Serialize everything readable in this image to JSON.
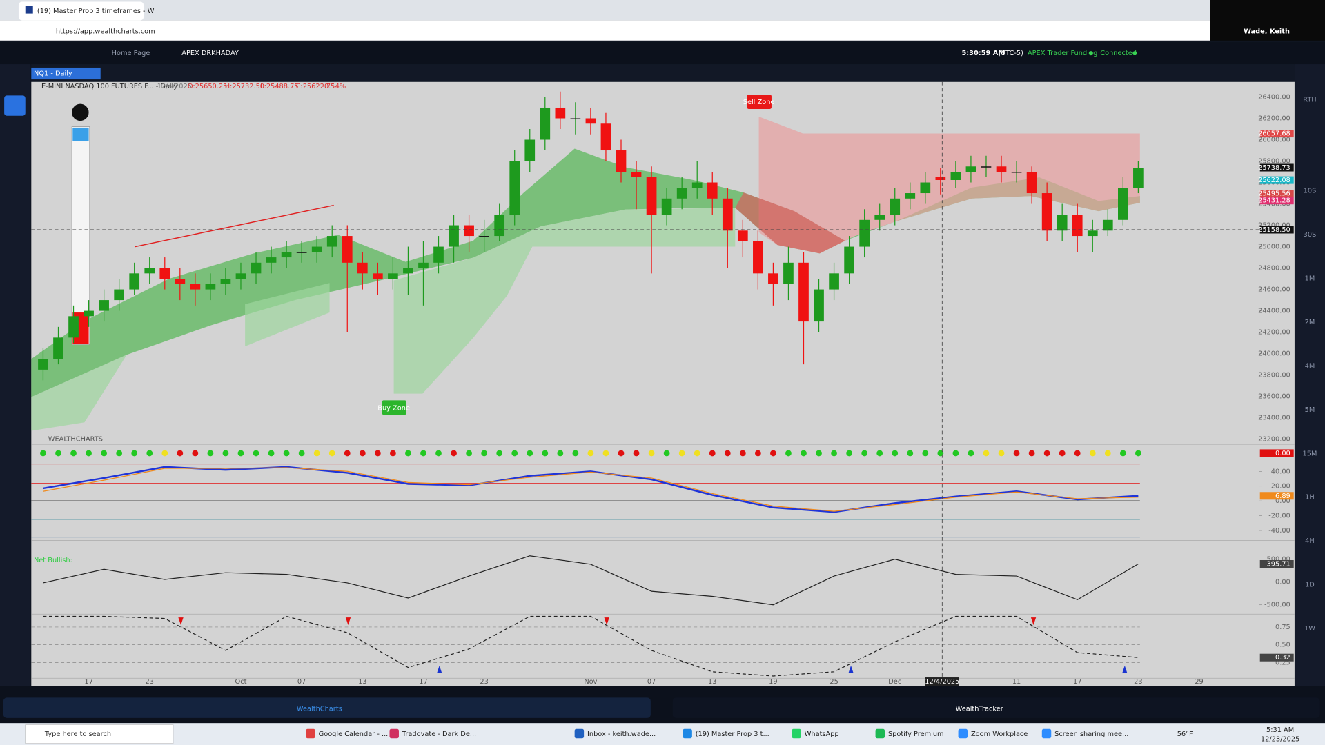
{
  "browser": {
    "tab_title": "(19) Master Prop 3 timeframes - W",
    "url": "https://app.wealthcharts.com",
    "user": "Wade, Keith"
  },
  "app": {
    "tabs": [
      "Home Page",
      "APEX DRKHADAY"
    ],
    "clock": "5:30:59 AM",
    "timezone": "(UTC-5)",
    "account": "APEX Trader Funding",
    "status": "Connected",
    "symbol_tab": "NQ1 - Daily",
    "logo": "WEALTHCHARTS",
    "rth": "RTH",
    "timeframes": [
      "10S",
      "30S",
      "1M",
      "2M",
      "4M",
      "5M",
      "15M",
      "1H",
      "4H",
      "1D",
      "1W"
    ],
    "bottom_tabs": [
      "WealthCharts",
      "WealthTracker"
    ]
  },
  "legend": {
    "name": "E-MINI NASDAQ 100 FUTURES F... - Daily",
    "date": "12/4/2025",
    "open": "O:25650.25",
    "high": "H:25732.50",
    "low": "L:25488.75",
    "close": "C:25622.75",
    "change": "-0.14%"
  },
  "chart_data": [
    {
      "type": "candlestick",
      "up_color": "#1e9a1e",
      "down_color": "#f01212",
      "categories": [
        null,
        null,
        null,
        "17",
        null,
        null,
        null,
        "23",
        null,
        null,
        null,
        null,
        null,
        "Oct",
        null,
        null,
        null,
        "07",
        null,
        null,
        null,
        "13",
        null,
        null,
        null,
        "17",
        null,
        null,
        null,
        "23",
        null,
        null,
        null,
        null,
        null,
        null,
        "Nov",
        null,
        null,
        null,
        "07",
        null,
        null,
        null,
        "13",
        null,
        null,
        null,
        "19",
        null,
        null,
        null,
        "25",
        null,
        null,
        null,
        "Dec",
        null,
        null,
        null,
        null,
        null,
        null,
        null,
        "11",
        null,
        null,
        null,
        "17",
        null,
        null,
        null,
        "23",
        null,
        null,
        null,
        "29"
      ],
      "open": [
        23850,
        23950,
        24150,
        24350,
        24400,
        24500,
        24600,
        24750,
        24800,
        24700,
        24650,
        24600,
        24650,
        24700,
        24750,
        24850,
        24900,
        24950,
        24950,
        25000,
        25100,
        24850,
        24750,
        24700,
        24750,
        24800,
        24850,
        25000,
        25200,
        25100,
        25100,
        25300,
        25800,
        26000,
        26300,
        26200,
        26200,
        26150,
        25900,
        25700,
        25650,
        25300,
        25450,
        25550,
        25600,
        25450,
        25150,
        25050,
        24750,
        24650,
        24850,
        24300,
        24600,
        24750,
        25000,
        25250,
        25300,
        25450,
        25500,
        25650.25,
        25622.75,
        25700,
        25750,
        25750,
        25700,
        25700,
        25500,
        25150,
        25300,
        25100,
        25150,
        25250,
        25550,
        null,
        null,
        null,
        null
      ],
      "high": [
        24050,
        24250,
        24450,
        24500,
        24600,
        24700,
        24850,
        24900,
        24900,
        24800,
        24750,
        24750,
        24800,
        24850,
        24950,
        25000,
        25050,
        25050,
        25100,
        25200,
        25200,
        24950,
        24850,
        24900,
        25000,
        25050,
        25100,
        25300,
        25300,
        25250,
        25400,
        25900,
        26100,
        26400,
        26450,
        26350,
        26300,
        26250,
        26000,
        25800,
        25750,
        25550,
        25650,
        25800,
        25700,
        25550,
        25250,
        25150,
        24850,
        25000,
        24950,
        24700,
        24850,
        25100,
        25350,
        25400,
        25550,
        25600,
        25700,
        25732.5,
        25800,
        25850,
        25850,
        25850,
        25800,
        25750,
        25600,
        25400,
        25400,
        25250,
        25350,
        25650,
        25800,
        null,
        null,
        null,
        null
      ],
      "low": [
        23750,
        23900,
        24100,
        24250,
        24300,
        24400,
        24550,
        24650,
        24600,
        24500,
        24450,
        24500,
        24550,
        24600,
        24650,
        24750,
        24800,
        24850,
        24850,
        24900,
        24200,
        24600,
        24550,
        24600,
        24550,
        24450,
        24750,
        24850,
        24950,
        24950,
        25050,
        25200,
        25700,
        25900,
        26100,
        26050,
        26050,
        25800,
        25600,
        25350,
        24750,
        25200,
        25350,
        25450,
        25300,
        24800,
        24900,
        24600,
        24450,
        24500,
        23900,
        24200,
        24500,
        24650,
        24900,
        25150,
        25200,
        25350,
        25400,
        25488.75,
        25550,
        25600,
        25650,
        25600,
        25600,
        25400,
        25050,
        25050,
        24950,
        24950,
        25100,
        25200,
        25500,
        null,
        null,
        null,
        null
      ],
      "close": [
        23950,
        24150,
        24350,
        24400,
        24500,
        24600,
        24750,
        24800,
        24700,
        24650,
        24600,
        24650,
        24700,
        24750,
        24850,
        24900,
        24950,
        24950,
        25000,
        25100,
        24850,
        24750,
        24700,
        24750,
        24800,
        24850,
        25000,
        25200,
        25100,
        25100,
        25300,
        25800,
        26000,
        26300,
        26200,
        26200,
        26150,
        25900,
        25700,
        25650,
        25300,
        25450,
        25550,
        25600,
        25450,
        25150,
        25050,
        24750,
        24650,
        24850,
        24300,
        24600,
        24750,
        25000,
        25250,
        25300,
        25450,
        25500,
        25600,
        25622.75,
        25700,
        25750,
        25750,
        25700,
        25700,
        25500,
        25150,
        25300,
        25100,
        25150,
        25250,
        25550,
        25738.73,
        null,
        null,
        null,
        null
      ],
      "ylim": [
        23160,
        26540
      ],
      "yticks": [
        {
          "value": 23200,
          "label": "23200.00"
        },
        {
          "value": 23400,
          "label": "23400.00"
        },
        {
          "value": 23600,
          "label": "23600.00"
        },
        {
          "value": 23800,
          "label": "23800.00"
        },
        {
          "value": 24000,
          "label": "24000.00"
        },
        {
          "value": 24200,
          "label": "24200.00"
        },
        {
          "value": 24400,
          "label": "24400.00"
        },
        {
          "value": 24600,
          "label": "24600.00"
        },
        {
          "value": 24800,
          "label": "24800.00"
        },
        {
          "value": 25000,
          "label": "25000.00"
        },
        {
          "value": 25200,
          "label": "25200.00"
        },
        {
          "value": 25400,
          "label": "25400.00"
        },
        {
          "value": 25600,
          "label": "25600.00"
        },
        {
          "value": 25800,
          "label": "25800.00"
        },
        {
          "value": 26000,
          "label": "26000.00"
        },
        {
          "value": 26200,
          "label": "26200.00"
        },
        {
          "value": 26400,
          "label": "26400.00"
        }
      ],
      "price_labels": [
        {
          "value": 26057.68,
          "label": "26057.68",
          "color": "#e04848"
        },
        {
          "value": 25738.73,
          "label": "25738.73",
          "color": "#111111"
        },
        {
          "value": 25622.08,
          "label": "25622.08",
          "color": "#18b8c8"
        },
        {
          "value": 25495.56,
          "label": "25495.56",
          "color": "#d84848"
        },
        {
          "value": 25431.28,
          "label": "25431.28",
          "color": "#e03070"
        }
      ],
      "crosshair": {
        "date": "12/4/2025",
        "price": {
          "value": 25158.5,
          "label": "25158.50"
        }
      },
      "annotations": [
        "Sell Zone",
        "Buy Zone"
      ]
    },
    {
      "type": "dots",
      "colors": [
        "#22c822",
        "#22c822",
        "#22c822",
        "#22c822",
        "#22c822",
        "#22c822",
        "#22c822",
        "#22c822",
        "#f0e020",
        "#e01010",
        "#e01010",
        "#22c822",
        "#22c822",
        "#22c822",
        "#22c822",
        "#22c822",
        "#22c822",
        "#22c822",
        "#f0e020",
        "#f0e020",
        "#e01010",
        "#e01010",
        "#e01010",
        "#e01010",
        "#22c822",
        "#22c822",
        "#22c822",
        "#e01010",
        "#22c822",
        "#22c822",
        "#22c822",
        "#22c822",
        "#22c822",
        "#22c822",
        "#22c822",
        "#22c822",
        "#f0e020",
        "#f0e020",
        "#e01010",
        "#e01010",
        "#f0e020",
        "#22c822",
        "#f0e020",
        "#f0e020",
        "#e01010",
        "#e01010",
        "#e01010",
        "#e01010",
        "#e01010",
        "#22c822",
        "#22c822",
        "#22c822",
        "#22c822",
        "#22c822",
        "#22c822",
        "#22c822",
        "#22c822",
        "#22c822",
        "#22c822",
        "#22c822",
        "#22c822",
        "#22c822",
        "#f0e020",
        "#f0e020",
        "#e01010",
        "#e01010",
        "#e01010",
        "#e01010",
        "#e01010",
        "#f0e020",
        "#f0e020",
        "#22c822",
        "#22c822"
      ],
      "last_value": {
        "value": 0,
        "label": "0.00"
      }
    },
    {
      "type": "line",
      "series": [
        {
          "color": "#1f34d8",
          "values": [
            17,
            31,
            46,
            42,
            46,
            38,
            23,
            21,
            34,
            40,
            29,
            8,
            -9,
            -15,
            -3,
            6,
            13,
            2,
            6.89
          ]
        },
        {
          "color": "#f08a1c",
          "values": [
            13,
            28,
            44,
            44,
            45,
            40,
            25,
            22,
            32,
            39,
            31,
            10,
            -7,
            -14,
            -5,
            5,
            12,
            3,
            5
          ]
        }
      ],
      "levels": [
        {
          "value": 50,
          "color": "#e03030"
        },
        {
          "value": 24,
          "color": "#e03030"
        },
        {
          "value": 0,
          "color": "#222222"
        },
        {
          "value": -25,
          "color": "#3a8a9a"
        },
        {
          "value": -49,
          "color": "#3a6a9a"
        }
      ],
      "ylim": [
        -53.7,
        52.6
      ],
      "yticks": [
        {
          "value": 40,
          "label": "40.00"
        },
        {
          "value": 20,
          "label": "20.00"
        },
        {
          "value": 0,
          "label": "0.00"
        },
        {
          "value": -20,
          "label": "-20.00"
        },
        {
          "value": -40,
          "label": "-40.00"
        }
      ],
      "last_value": {
        "value": 6.89,
        "label": "6.89"
      }
    },
    {
      "type": "line",
      "title": "Net Bullish:",
      "series": [
        {
          "color": "#222222",
          "values": [
            -19,
            278,
            56,
            204,
            167,
            -19,
            -352,
            130,
            574,
            389,
            -204,
            -315,
            -500,
            130,
            500,
            167,
            130,
            -389,
            395.71
          ]
        }
      ],
      "ylim": [
        -704,
        889
      ],
      "yticks": [
        {
          "value": 500,
          "label": "500.00"
        },
        {
          "value": 0,
          "label": "0.00"
        },
        {
          "value": -500,
          "label": "-500.00"
        }
      ],
      "last_value": {
        "value": 395.71,
        "label": "395.71"
      }
    },
    {
      "type": "line",
      "dashed": true,
      "series": [
        {
          "color": "#222222",
          "values": [
            0.9,
            0.9,
            0.87,
            0.42,
            0.9,
            0.67,
            0.18,
            0.44,
            0.9,
            0.9,
            0.42,
            0.12,
            0.06,
            0.12,
            0.54,
            0.9,
            0.9,
            0.39,
            0.32
          ]
        }
      ],
      "ylim": [
        0.04,
        0.92
      ],
      "yticks": [
        0.75,
        {
          "value": 0.5,
          "label": "0.50"
        },
        0.25
      ],
      "last_value": {
        "value": 0.32,
        "label": "0.32"
      }
    }
  ],
  "taskbar": {
    "search": "Type here to search",
    "items": [
      "Google Calendar - ...",
      "Tradovate - Dark De...",
      "Inbox - keith.wade...",
      "(19) Master Prop 3 t...",
      "WhatsApp",
      "Spotify Premium",
      "Zoom Workplace",
      "Screen sharing mee..."
    ],
    "weather": "56°F",
    "time": "5:31 AM",
    "date": "12/23/2025"
  }
}
